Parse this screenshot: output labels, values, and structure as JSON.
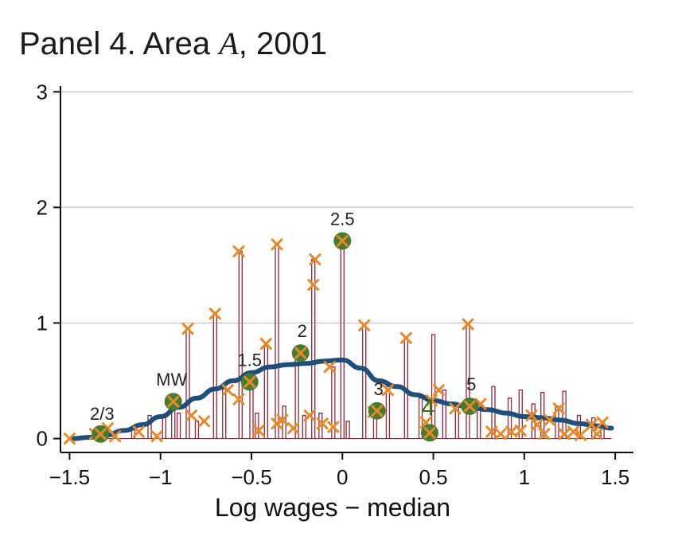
{
  "chart_data": {
    "type": "line",
    "title_prefix": "Panel 4. Area ",
    "title_variable": "A",
    "title_suffix": ", 2001",
    "xlabel": "Log wages − median",
    "ylabel": "",
    "xlim": [
      -1.55,
      1.6
    ],
    "ylim": [
      -0.12,
      3.05
    ],
    "xticks": [
      -1.5,
      -1,
      -0.5,
      0,
      0.5,
      1,
      1.5
    ],
    "xtick_labels": [
      "−1.5",
      "−1",
      "−0.5",
      "0",
      "0.5",
      "1",
      "1.5"
    ],
    "yticks": [
      0,
      1,
      2,
      3
    ],
    "ytick_labels": [
      "0",
      "1",
      "2",
      "3"
    ],
    "grid": "horizontal",
    "colors": {
      "histogram": "#8b2a3a",
      "density": "#1f4e79",
      "cross": "#e38b2c",
      "circle": "#4a7a2f",
      "grid": "#cccccc"
    },
    "density_curve": {
      "x": [
        -1.48,
        -1.4,
        -1.3,
        -1.2,
        -1.1,
        -1.0,
        -0.9,
        -0.8,
        -0.7,
        -0.6,
        -0.5,
        -0.4,
        -0.3,
        -0.2,
        -0.1,
        0.0,
        0.1,
        0.2,
        0.3,
        0.4,
        0.5,
        0.6,
        0.7,
        0.8,
        0.9,
        1.0,
        1.1,
        1.2,
        1.3,
        1.4,
        1.48
      ],
      "y": [
        0.0,
        0.01,
        0.03,
        0.07,
        0.12,
        0.19,
        0.27,
        0.35,
        0.43,
        0.5,
        0.57,
        0.62,
        0.64,
        0.65,
        0.67,
        0.68,
        0.61,
        0.5,
        0.45,
        0.38,
        0.33,
        0.3,
        0.27,
        0.25,
        0.22,
        0.19,
        0.18,
        0.16,
        0.13,
        0.11,
        0.09
      ]
    },
    "histogram": {
      "x": [
        -1.36,
        -1.3,
        -1.15,
        -1.06,
        -0.98,
        -0.93,
        -0.9,
        -0.85,
        -0.8,
        -0.7,
        -0.65,
        -0.56,
        -0.5,
        -0.47,
        -0.42,
        -0.36,
        -0.32,
        -0.25,
        -0.21,
        -0.16,
        -0.12,
        -0.05,
        0.0,
        0.03,
        0.12,
        0.18,
        0.25,
        0.35,
        0.43,
        0.5,
        0.56,
        0.63,
        0.69,
        0.75,
        0.83,
        0.92,
        0.98,
        1.05,
        1.1,
        1.18,
        1.22,
        1.3,
        1.38,
        1.43
      ],
      "y": [
        0.05,
        0.08,
        0.1,
        0.2,
        0.2,
        0.32,
        0.22,
        0.95,
        0.15,
        1.08,
        0.43,
        1.62,
        0.48,
        0.22,
        0.8,
        1.68,
        0.28,
        0.73,
        0.2,
        1.55,
        0.22,
        0.62,
        1.7,
        0.15,
        0.98,
        0.23,
        0.45,
        0.88,
        0.35,
        0.9,
        0.42,
        0.28,
        0.99,
        0.3,
        0.45,
        0.35,
        0.42,
        0.3,
        0.4,
        0.28,
        0.41,
        0.2,
        0.18,
        0.15
      ]
    },
    "crosses": {
      "x": [
        -1.5,
        -1.36,
        -1.29,
        -1.25,
        -1.12,
        -1.02,
        -0.93,
        -0.85,
        -0.83,
        -0.76,
        -0.7,
        -0.63,
        -0.57,
        -0.57,
        -0.52,
        -0.46,
        -0.42,
        -0.36,
        -0.36,
        -0.33,
        -0.27,
        -0.23,
        -0.18,
        -0.15,
        -0.16,
        -0.11,
        -0.07,
        -0.05,
        0.0,
        0.12,
        0.17,
        0.25,
        0.35,
        0.46,
        0.53,
        0.49,
        0.62,
        0.69,
        0.76,
        0.82,
        0.87,
        0.93,
        0.98,
        1.04,
        1.07,
        1.11,
        1.14,
        1.19,
        1.22,
        1.27,
        1.31,
        1.37,
        1.4,
        1.43
      ],
      "y": [
        0.0,
        0.04,
        0.09,
        0.02,
        0.06,
        0.02,
        0.32,
        0.95,
        0.2,
        0.15,
        1.08,
        0.42,
        0.34,
        1.62,
        0.48,
        0.07,
        0.82,
        1.68,
        0.13,
        0.16,
        0.09,
        0.73,
        0.2,
        1.55,
        1.33,
        0.13,
        0.62,
        0.1,
        1.7,
        0.98,
        0.23,
        0.42,
        0.87,
        0.14,
        0.42,
        0.33,
        0.26,
        0.99,
        0.3,
        0.06,
        0.04,
        0.06,
        0.07,
        0.2,
        0.12,
        0.04,
        0.16,
        0.26,
        0.04,
        0.06,
        0.03,
        0.12,
        0.04,
        0.14
      ]
    },
    "key_points": [
      {
        "label": "2/3",
        "x": -1.33,
        "y": 0.04,
        "dx": 2,
        "dy": -18,
        "size": "normal"
      },
      {
        "label": "MW",
        "x": -0.93,
        "y": 0.32,
        "dx": -2,
        "dy": -20,
        "size": "normal"
      },
      {
        "label": "1.5",
        "x": -0.51,
        "y": 0.49,
        "dx": 0,
        "dy": -20,
        "size": "normal"
      },
      {
        "label": "2",
        "x": -0.23,
        "y": 0.74,
        "dx": 2,
        "dy": -20,
        "size": "normal"
      },
      {
        "label": "2.5",
        "x": 0.0,
        "y": 1.71,
        "dx": 0,
        "dy": -20,
        "size": "normal"
      },
      {
        "label": "3",
        "x": 0.19,
        "y": 0.24,
        "dx": 2,
        "dy": -20,
        "size": "normal"
      },
      {
        "label": "4",
        "x": 0.48,
        "y": 0.05,
        "dx": -2,
        "dy": -22,
        "size": "big"
      },
      {
        "label": "5",
        "x": 0.7,
        "y": 0.28,
        "dx": 2,
        "dy": -20,
        "size": "normal"
      }
    ]
  }
}
